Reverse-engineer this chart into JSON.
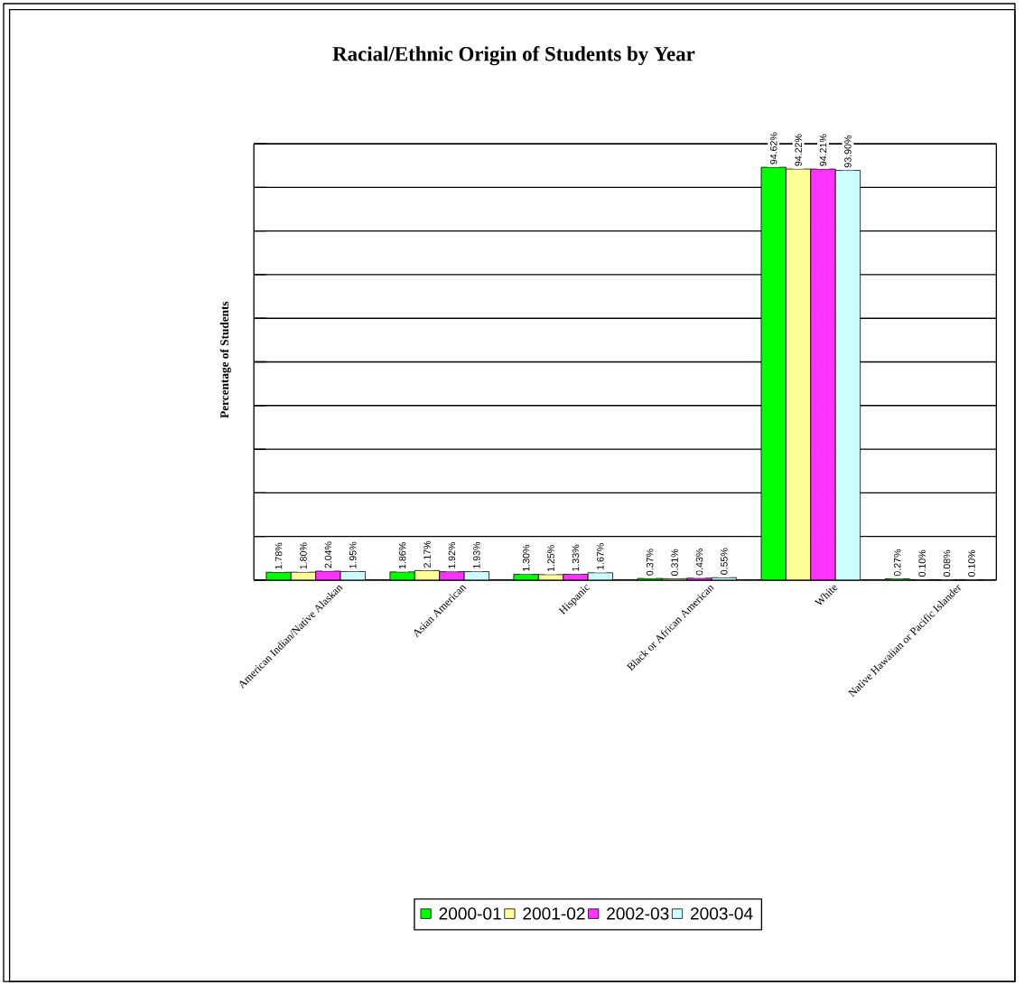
{
  "chart_data": {
    "type": "bar",
    "title": "Racial/Ethnic Origin of Students by Year",
    "ylabel": "Percentage of Students",
    "categories": [
      "American Indian/Native Alaskan",
      "Asian American",
      "Hispanic",
      "Black or African American",
      "White",
      "Native Hawaiian or Pacific Islander"
    ],
    "series": [
      {
        "name": "2000-01",
        "color": "#00ff00",
        "values": [
          1.78,
          1.86,
          1.3,
          0.37,
          94.62,
          0.27
        ],
        "value_labels": [
          "1.78%",
          "1.86%",
          "1.30%",
          "0.37%",
          "94.62%",
          "0.27%"
        ]
      },
      {
        "name": "2001-02",
        "color": "#ffff99",
        "values": [
          1.8,
          2.17,
          1.25,
          0.31,
          94.22,
          0.1
        ],
        "value_labels": [
          "1.80%",
          "2.17%",
          "1.25%",
          "0.31%",
          "94.22%",
          "0.10%"
        ]
      },
      {
        "name": "2002-03",
        "color": "#ff33ff",
        "values": [
          2.04,
          1.92,
          1.33,
          0.43,
          94.21,
          0.08
        ],
        "value_labels": [
          "2.04%",
          "1.92%",
          "1.33%",
          "0.43%",
          "94.21%",
          "0.08%"
        ]
      },
      {
        "name": "2003-04",
        "color": "#ccffff",
        "values": [
          1.95,
          1.93,
          1.67,
          0.55,
          93.9,
          0.1
        ],
        "value_labels": [
          "1.95%",
          "1.93%",
          "1.67%",
          "0.55%",
          "93.90%",
          "0.10%"
        ]
      }
    ],
    "ylim": [
      0,
      100
    ],
    "yticks": [
      {
        "value": 0,
        "label": null
      },
      {
        "value": 10,
        "label": null
      },
      {
        "value": 20,
        "label": null
      },
      {
        "value": 30,
        "label": null
      },
      {
        "value": 40,
        "label": null
      },
      {
        "value": 50,
        "label": null
      },
      {
        "value": 60,
        "label": null
      },
      {
        "value": 70,
        "label": null
      },
      {
        "value": 80,
        "label": null
      },
      {
        "value": 90,
        "label": null
      },
      {
        "value": 100,
        "label": null
      }
    ],
    "grid": "y",
    "legend": "bottom"
  }
}
